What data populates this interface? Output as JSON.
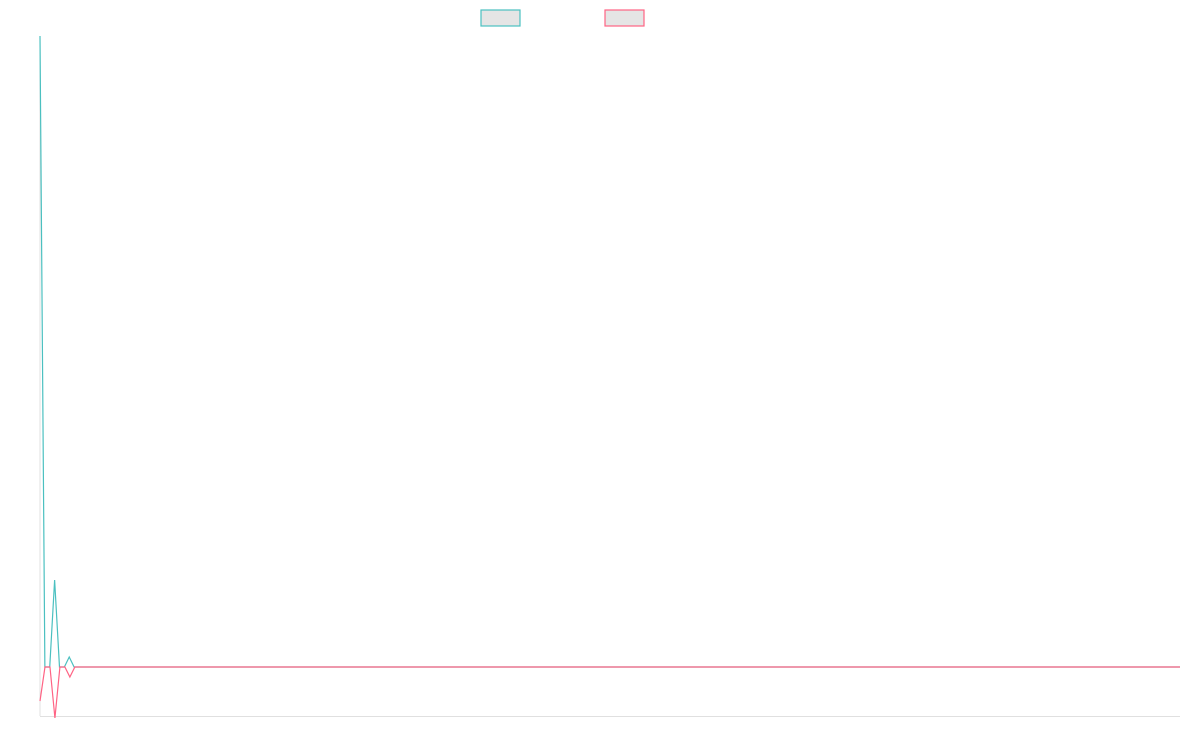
{
  "chart_data": {
    "type": "line",
    "title": "",
    "xlabel": "",
    "ylabel": "",
    "ylim": [
      -4.9,
      63.1
    ],
    "grid": false,
    "legend_placement": "top",
    "series": [
      {
        "color": "#4bc0c0",
        "values": [
          63.1,
          0,
          0,
          8.7,
          0,
          0,
          1,
          0,
          0,
          0,
          0,
          0,
          0,
          0,
          0,
          0,
          0,
          0,
          0,
          0,
          0,
          0,
          0,
          0,
          0,
          0,
          0,
          0,
          0,
          0,
          0,
          0,
          0,
          0,
          0,
          0,
          0,
          0,
          0,
          0,
          0,
          0,
          0,
          0,
          0,
          0,
          0,
          0,
          0,
          0,
          0,
          0,
          0,
          0,
          0,
          0,
          0,
          0,
          0,
          0,
          0,
          0,
          0,
          0,
          0,
          0,
          0,
          0,
          0,
          0,
          0,
          0,
          0,
          0,
          0,
          0,
          0,
          0,
          0,
          0,
          0,
          0,
          0,
          0,
          0,
          0,
          0,
          0,
          0,
          0,
          0,
          0,
          0,
          0,
          0,
          0,
          0,
          0,
          0,
          0,
          0,
          0,
          0,
          0,
          0,
          0,
          0,
          0,
          0,
          0,
          0,
          0,
          0,
          0,
          0,
          0,
          0,
          0,
          0,
          0,
          0,
          0,
          0,
          0,
          0,
          0,
          0,
          0,
          0,
          0,
          0,
          0,
          0,
          0,
          0,
          0,
          0,
          0,
          0,
          0,
          0,
          0,
          0,
          0,
          0,
          0,
          0,
          0,
          0,
          0,
          0,
          0,
          0,
          0,
          0,
          0,
          0,
          0,
          0,
          0,
          0,
          0,
          0,
          0,
          0,
          0,
          0,
          0,
          0,
          0,
          0,
          0,
          0,
          0,
          0,
          0,
          0,
          0,
          0,
          0,
          0,
          0,
          0,
          0,
          0,
          0,
          0,
          0,
          0,
          0,
          0,
          0,
          0,
          0,
          0,
          0,
          0,
          0,
          0,
          0,
          0,
          0,
          0,
          0,
          0,
          0,
          0,
          0,
          0,
          0,
          0,
          0,
          0,
          0,
          0,
          0,
          0,
          0,
          0,
          0,
          0,
          0,
          0,
          0,
          0,
          0,
          0,
          0,
          0,
          0,
          0,
          0,
          0,
          0,
          0
        ]
      },
      {
        "color": "#ff6384",
        "values": [
          -3.4,
          0,
          0,
          -5.1,
          0,
          0,
          -1,
          0,
          0,
          0,
          0,
          0,
          0,
          0,
          0,
          0,
          0,
          0,
          0,
          0,
          0,
          0,
          0,
          0,
          0,
          0,
          0,
          0,
          0,
          0,
          0,
          0,
          0,
          0,
          0,
          0,
          0,
          0,
          0,
          0,
          0,
          0,
          0,
          0,
          0,
          0,
          0,
          0,
          0,
          0,
          0,
          0,
          0,
          0,
          0,
          0,
          0,
          0,
          0,
          0,
          0,
          0,
          0,
          0,
          0,
          0,
          0,
          0,
          0,
          0,
          0,
          0,
          0,
          0,
          0,
          0,
          0,
          0,
          0,
          0,
          0,
          0,
          0,
          0,
          0,
          0,
          0,
          0,
          0,
          0,
          0,
          0,
          0,
          0,
          0,
          0,
          0,
          0,
          0,
          0,
          0,
          0,
          0,
          0,
          0,
          0,
          0,
          0,
          0,
          0,
          0,
          0,
          0,
          0,
          0,
          0,
          0,
          0,
          0,
          0,
          0,
          0,
          0,
          0,
          0,
          0,
          0,
          0,
          0,
          0,
          0,
          0,
          0,
          0,
          0,
          0,
          0,
          0,
          0,
          0,
          0,
          0,
          0,
          0,
          0,
          0,
          0,
          0,
          0,
          0,
          0,
          0,
          0,
          0,
          0,
          0,
          0,
          0,
          0,
          0,
          0,
          0,
          0,
          0,
          0,
          0,
          0,
          0,
          0,
          0,
          0,
          0,
          0,
          0,
          0,
          0,
          0,
          0,
          0,
          0,
          0,
          0,
          0,
          0,
          0,
          0,
          0,
          0,
          0,
          0,
          0,
          0,
          0,
          0,
          0,
          0,
          0,
          0,
          0,
          0,
          0,
          0,
          0,
          0,
          0,
          0,
          0,
          0,
          0,
          0,
          0,
          0,
          0,
          0,
          0,
          0,
          0,
          0,
          0,
          0,
          0,
          0,
          0,
          0,
          0,
          0,
          0,
          0,
          0,
          0
        ]
      }
    ]
  }
}
